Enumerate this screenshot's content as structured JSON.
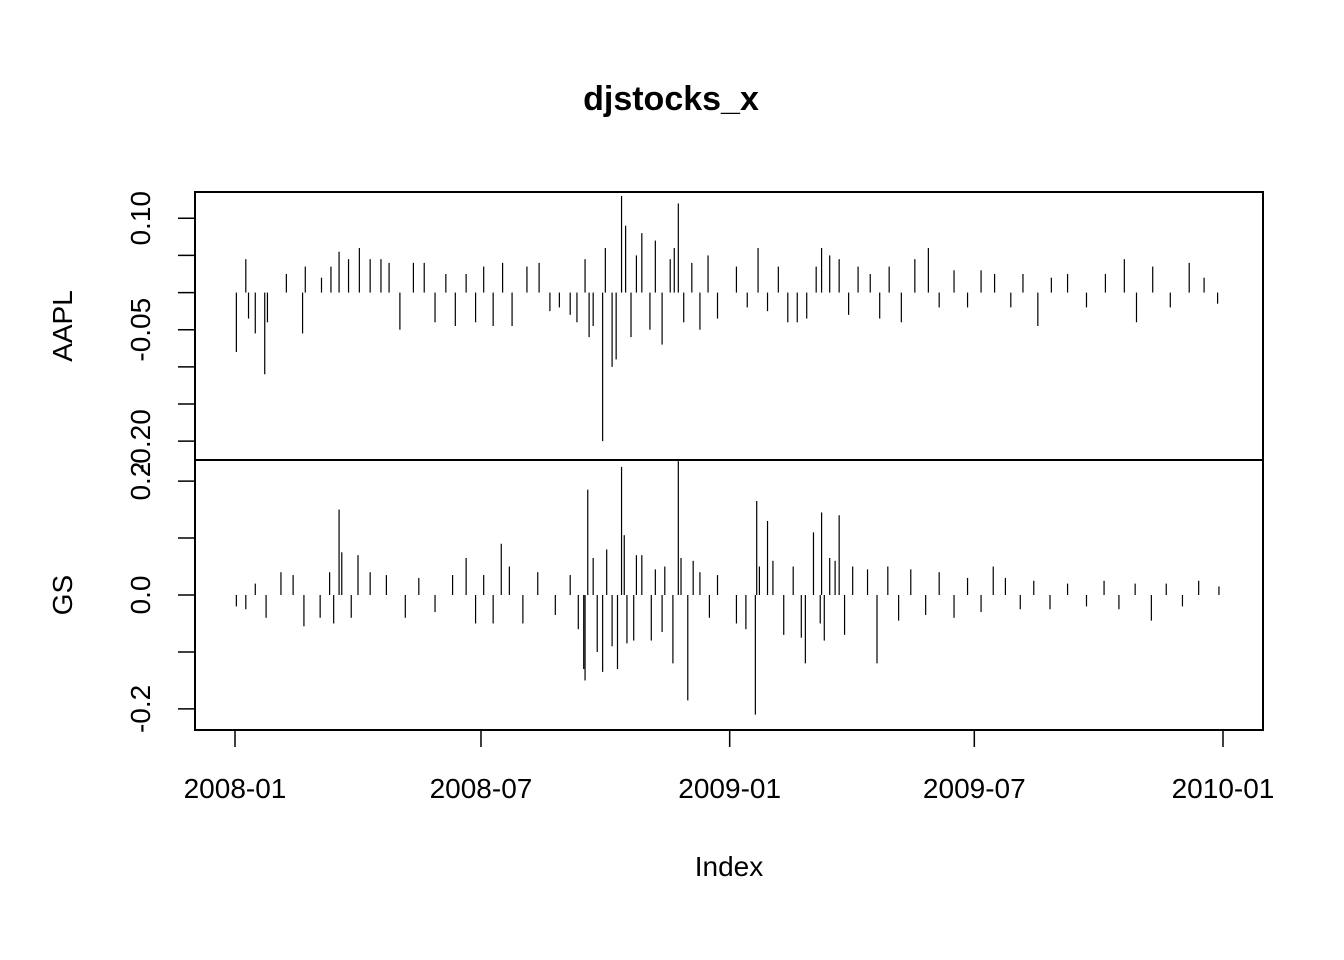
{
  "chart_data": {
    "type": "line",
    "style": "histogram-spikes",
    "title": "djstocks_x",
    "xlabel": "Index",
    "x_ticks": [
      "2008-01",
      "2008-07",
      "2009-01",
      "2009-07",
      "2010-01"
    ],
    "x_range": [
      "2008-01",
      "2010-01"
    ],
    "grid": false,
    "legend": "none",
    "panels": [
      {
        "name": "AAPL",
        "ylabel": "AAPL",
        "ylim": [
          -0.22,
          0.13
        ],
        "y_ticks": [
          0.1,
          0.05,
          0.0,
          -0.05,
          -0.1,
          -0.15,
          -0.2
        ],
        "y_tick_labels": [
          "0.10",
          "",
          "",
          "-0.05",
          "",
          "",
          "-0.20"
        ],
        "spikes": [
          {
            "x": "2008-01-02",
            "y": -0.08
          },
          {
            "x": "2008-01-09",
            "y": 0.045
          },
          {
            "x": "2008-01-11",
            "y": -0.035
          },
          {
            "x": "2008-01-16",
            "y": -0.055
          },
          {
            "x": "2008-01-23",
            "y": -0.11
          },
          {
            "x": "2008-01-25",
            "y": -0.04
          },
          {
            "x": "2008-02-08",
            "y": 0.025
          },
          {
            "x": "2008-02-20",
            "y": -0.055
          },
          {
            "x": "2008-02-22",
            "y": 0.035
          },
          {
            "x": "2008-03-05",
            "y": 0.02
          },
          {
            "x": "2008-03-12",
            "y": 0.035
          },
          {
            "x": "2008-03-18",
            "y": 0.055
          },
          {
            "x": "2008-03-25",
            "y": 0.045
          },
          {
            "x": "2008-04-02",
            "y": 0.06
          },
          {
            "x": "2008-04-10",
            "y": 0.045
          },
          {
            "x": "2008-04-18",
            "y": 0.045
          },
          {
            "x": "2008-04-24",
            "y": 0.04
          },
          {
            "x": "2008-05-02",
            "y": -0.05
          },
          {
            "x": "2008-05-12",
            "y": 0.04
          },
          {
            "x": "2008-05-20",
            "y": 0.04
          },
          {
            "x": "2008-05-28",
            "y": -0.04
          },
          {
            "x": "2008-06-05",
            "y": 0.025
          },
          {
            "x": "2008-06-12",
            "y": -0.045
          },
          {
            "x": "2008-06-20",
            "y": 0.025
          },
          {
            "x": "2008-06-27",
            "y": -0.04
          },
          {
            "x": "2008-07-03",
            "y": 0.035
          },
          {
            "x": "2008-07-10",
            "y": -0.045
          },
          {
            "x": "2008-07-17",
            "y": 0.04
          },
          {
            "x": "2008-07-24",
            "y": -0.045
          },
          {
            "x": "2008-08-04",
            "y": 0.035
          },
          {
            "x": "2008-08-13",
            "y": 0.04
          },
          {
            "x": "2008-08-21",
            "y": -0.025
          },
          {
            "x": "2008-08-28",
            "y": -0.02
          },
          {
            "x": "2008-09-05",
            "y": -0.03
          },
          {
            "x": "2008-09-10",
            "y": -0.04
          },
          {
            "x": "2008-09-16",
            "y": 0.045
          },
          {
            "x": "2008-09-19",
            "y": -0.06
          },
          {
            "x": "2008-09-22",
            "y": -0.045
          },
          {
            "x": "2008-09-29",
            "y": -0.2
          },
          {
            "x": "2008-10-01",
            "y": 0.06
          },
          {
            "x": "2008-10-06",
            "y": -0.1
          },
          {
            "x": "2008-10-09",
            "y": -0.09
          },
          {
            "x": "2008-10-13",
            "y": 0.13
          },
          {
            "x": "2008-10-16",
            "y": 0.09
          },
          {
            "x": "2008-10-20",
            "y": -0.06
          },
          {
            "x": "2008-10-24",
            "y": 0.05
          },
          {
            "x": "2008-10-28",
            "y": 0.08
          },
          {
            "x": "2008-11-03",
            "y": -0.05
          },
          {
            "x": "2008-11-07",
            "y": 0.07
          },
          {
            "x": "2008-11-12",
            "y": -0.07
          },
          {
            "x": "2008-11-18",
            "y": 0.045
          },
          {
            "x": "2008-11-21",
            "y": 0.06
          },
          {
            "x": "2008-11-24",
            "y": 0.12
          },
          {
            "x": "2008-11-28",
            "y": -0.04
          },
          {
            "x": "2008-12-04",
            "y": 0.04
          },
          {
            "x": "2008-12-10",
            "y": -0.05
          },
          {
            "x": "2008-12-16",
            "y": 0.05
          },
          {
            "x": "2008-12-23",
            "y": -0.035
          },
          {
            "x": "2009-01-06",
            "y": 0.035
          },
          {
            "x": "2009-01-14",
            "y": -0.02
          },
          {
            "x": "2009-01-22",
            "y": 0.06
          },
          {
            "x": "2009-01-29",
            "y": -0.025
          },
          {
            "x": "2009-02-06",
            "y": 0.035
          },
          {
            "x": "2009-02-13",
            "y": -0.04
          },
          {
            "x": "2009-02-20",
            "y": -0.04
          },
          {
            "x": "2009-02-27",
            "y": -0.035
          },
          {
            "x": "2009-03-06",
            "y": 0.035
          },
          {
            "x": "2009-03-10",
            "y": 0.06
          },
          {
            "x": "2009-03-16",
            "y": 0.05
          },
          {
            "x": "2009-03-23",
            "y": 0.045
          },
          {
            "x": "2009-03-30",
            "y": -0.03
          },
          {
            "x": "2009-04-06",
            "y": 0.035
          },
          {
            "x": "2009-04-15",
            "y": 0.025
          },
          {
            "x": "2009-04-22",
            "y": -0.035
          },
          {
            "x": "2009-04-29",
            "y": 0.035
          },
          {
            "x": "2009-05-08",
            "y": -0.04
          },
          {
            "x": "2009-05-18",
            "y": 0.045
          },
          {
            "x": "2009-05-28",
            "y": 0.06
          },
          {
            "x": "2009-06-05",
            "y": -0.02
          },
          {
            "x": "2009-06-16",
            "y": 0.03
          },
          {
            "x": "2009-06-26",
            "y": -0.02
          },
          {
            "x": "2009-07-06",
            "y": 0.03
          },
          {
            "x": "2009-07-16",
            "y": 0.025
          },
          {
            "x": "2009-07-28",
            "y": -0.02
          },
          {
            "x": "2009-08-06",
            "y": 0.025
          },
          {
            "x": "2009-08-17",
            "y": -0.045
          },
          {
            "x": "2009-08-27",
            "y": 0.02
          },
          {
            "x": "2009-09-08",
            "y": 0.025
          },
          {
            "x": "2009-09-22",
            "y": -0.02
          },
          {
            "x": "2009-10-06",
            "y": 0.025
          },
          {
            "x": "2009-10-20",
            "y": 0.045
          },
          {
            "x": "2009-10-29",
            "y": -0.04
          },
          {
            "x": "2009-11-10",
            "y": 0.035
          },
          {
            "x": "2009-11-23",
            "y": -0.02
          },
          {
            "x": "2009-12-07",
            "y": 0.04
          },
          {
            "x": "2009-12-18",
            "y": 0.02
          },
          {
            "x": "2009-12-28",
            "y": -0.015
          }
        ]
      },
      {
        "name": "GS",
        "ylabel": "GS",
        "ylim": [
          -0.23,
          0.23
        ],
        "y_ticks": [
          0.2,
          0.1,
          0.0,
          -0.1,
          -0.2
        ],
        "y_tick_labels": [
          "0.2",
          "",
          "0.0",
          "",
          "-0.2"
        ],
        "spikes": [
          {
            "x": "2008-01-02",
            "y": -0.02
          },
          {
            "x": "2008-01-09",
            "y": -0.025
          },
          {
            "x": "2008-01-16",
            "y": 0.02
          },
          {
            "x": "2008-01-24",
            "y": -0.04
          },
          {
            "x": "2008-02-04",
            "y": 0.04
          },
          {
            "x": "2008-02-13",
            "y": 0.035
          },
          {
            "x": "2008-02-21",
            "y": -0.055
          },
          {
            "x": "2008-03-04",
            "y": -0.04
          },
          {
            "x": "2008-03-11",
            "y": 0.04
          },
          {
            "x": "2008-03-14",
            "y": -0.05
          },
          {
            "x": "2008-03-18",
            "y": 0.15
          },
          {
            "x": "2008-03-20",
            "y": 0.075
          },
          {
            "x": "2008-03-27",
            "y": -0.04
          },
          {
            "x": "2008-04-01",
            "y": 0.07
          },
          {
            "x": "2008-04-10",
            "y": 0.04
          },
          {
            "x": "2008-04-22",
            "y": 0.035
          },
          {
            "x": "2008-05-06",
            "y": -0.04
          },
          {
            "x": "2008-05-16",
            "y": 0.03
          },
          {
            "x": "2008-05-28",
            "y": -0.03
          },
          {
            "x": "2008-06-10",
            "y": 0.035
          },
          {
            "x": "2008-06-20",
            "y": 0.065
          },
          {
            "x": "2008-06-27",
            "y": -0.05
          },
          {
            "x": "2008-07-03",
            "y": 0.035
          },
          {
            "x": "2008-07-10",
            "y": -0.05
          },
          {
            "x": "2008-07-16",
            "y": 0.09
          },
          {
            "x": "2008-07-22",
            "y": 0.05
          },
          {
            "x": "2008-08-01",
            "y": -0.05
          },
          {
            "x": "2008-08-12",
            "y": 0.04
          },
          {
            "x": "2008-08-25",
            "y": -0.035
          },
          {
            "x": "2008-09-05",
            "y": 0.035
          },
          {
            "x": "2008-09-11",
            "y": -0.06
          },
          {
            "x": "2008-09-15",
            "y": -0.13
          },
          {
            "x": "2008-09-16",
            "y": -0.15
          },
          {
            "x": "2008-09-18",
            "y": 0.185
          },
          {
            "x": "2008-09-22",
            "y": 0.065
          },
          {
            "x": "2008-09-25",
            "y": -0.1
          },
          {
            "x": "2008-09-29",
            "y": -0.135
          },
          {
            "x": "2008-10-02",
            "y": 0.08
          },
          {
            "x": "2008-10-06",
            "y": -0.09
          },
          {
            "x": "2008-10-10",
            "y": -0.13
          },
          {
            "x": "2008-10-13",
            "y": 0.225
          },
          {
            "x": "2008-10-15",
            "y": 0.105
          },
          {
            "x": "2008-10-17",
            "y": -0.085
          },
          {
            "x": "2008-10-22",
            "y": -0.08
          },
          {
            "x": "2008-10-24",
            "y": 0.07
          },
          {
            "x": "2008-10-28",
            "y": 0.07
          },
          {
            "x": "2008-11-04",
            "y": -0.08
          },
          {
            "x": "2008-11-07",
            "y": 0.045
          },
          {
            "x": "2008-11-12",
            "y": -0.065
          },
          {
            "x": "2008-11-14",
            "y": 0.05
          },
          {
            "x": "2008-11-20",
            "y": -0.12
          },
          {
            "x": "2008-11-24",
            "y": 0.235
          },
          {
            "x": "2008-11-26",
            "y": 0.065
          },
          {
            "x": "2008-12-01",
            "y": -0.185
          },
          {
            "x": "2008-12-05",
            "y": 0.06
          },
          {
            "x": "2008-12-10",
            "y": 0.04
          },
          {
            "x": "2008-12-17",
            "y": -0.04
          },
          {
            "x": "2008-12-23",
            "y": 0.035
          },
          {
            "x": "2009-01-06",
            "y": -0.05
          },
          {
            "x": "2009-01-13",
            "y": -0.06
          },
          {
            "x": "2009-01-20",
            "y": -0.21
          },
          {
            "x": "2009-01-21",
            "y": 0.165
          },
          {
            "x": "2009-01-23",
            "y": 0.05
          },
          {
            "x": "2009-01-29",
            "y": 0.13
          },
          {
            "x": "2009-02-02",
            "y": 0.06
          },
          {
            "x": "2009-02-10",
            "y": -0.07
          },
          {
            "x": "2009-02-17",
            "y": 0.05
          },
          {
            "x": "2009-02-23",
            "y": -0.075
          },
          {
            "x": "2009-02-26",
            "y": -0.12
          },
          {
            "x": "2009-03-04",
            "y": 0.11
          },
          {
            "x": "2009-03-09",
            "y": -0.05
          },
          {
            "x": "2009-03-10",
            "y": 0.145
          },
          {
            "x": "2009-03-12",
            "y": -0.08
          },
          {
            "x": "2009-03-16",
            "y": 0.065
          },
          {
            "x": "2009-03-20",
            "y": 0.06
          },
          {
            "x": "2009-03-23",
            "y": 0.14
          },
          {
            "x": "2009-03-27",
            "y": -0.07
          },
          {
            "x": "2009-04-02",
            "y": 0.05
          },
          {
            "x": "2009-04-13",
            "y": 0.045
          },
          {
            "x": "2009-04-20",
            "y": -0.12
          },
          {
            "x": "2009-04-28",
            "y": 0.05
          },
          {
            "x": "2009-05-06",
            "y": -0.045
          },
          {
            "x": "2009-05-15",
            "y": 0.045
          },
          {
            "x": "2009-05-26",
            "y": -0.035
          },
          {
            "x": "2009-06-05",
            "y": 0.04
          },
          {
            "x": "2009-06-16",
            "y": -0.04
          },
          {
            "x": "2009-06-26",
            "y": 0.03
          },
          {
            "x": "2009-07-06",
            "y": -0.03
          },
          {
            "x": "2009-07-15",
            "y": 0.05
          },
          {
            "x": "2009-07-24",
            "y": 0.03
          },
          {
            "x": "2009-08-04",
            "y": -0.025
          },
          {
            "x": "2009-08-14",
            "y": 0.025
          },
          {
            "x": "2009-08-26",
            "y": -0.025
          },
          {
            "x": "2009-09-08",
            "y": 0.02
          },
          {
            "x": "2009-09-22",
            "y": -0.02
          },
          {
            "x": "2009-10-05",
            "y": 0.025
          },
          {
            "x": "2009-10-16",
            "y": -0.025
          },
          {
            "x": "2009-10-28",
            "y": 0.02
          },
          {
            "x": "2009-11-09",
            "y": -0.045
          },
          {
            "x": "2009-11-20",
            "y": 0.02
          },
          {
            "x": "2009-12-02",
            "y": -0.02
          },
          {
            "x": "2009-12-14",
            "y": 0.025
          },
          {
            "x": "2009-12-29",
            "y": 0.015
          }
        ]
      }
    ]
  }
}
